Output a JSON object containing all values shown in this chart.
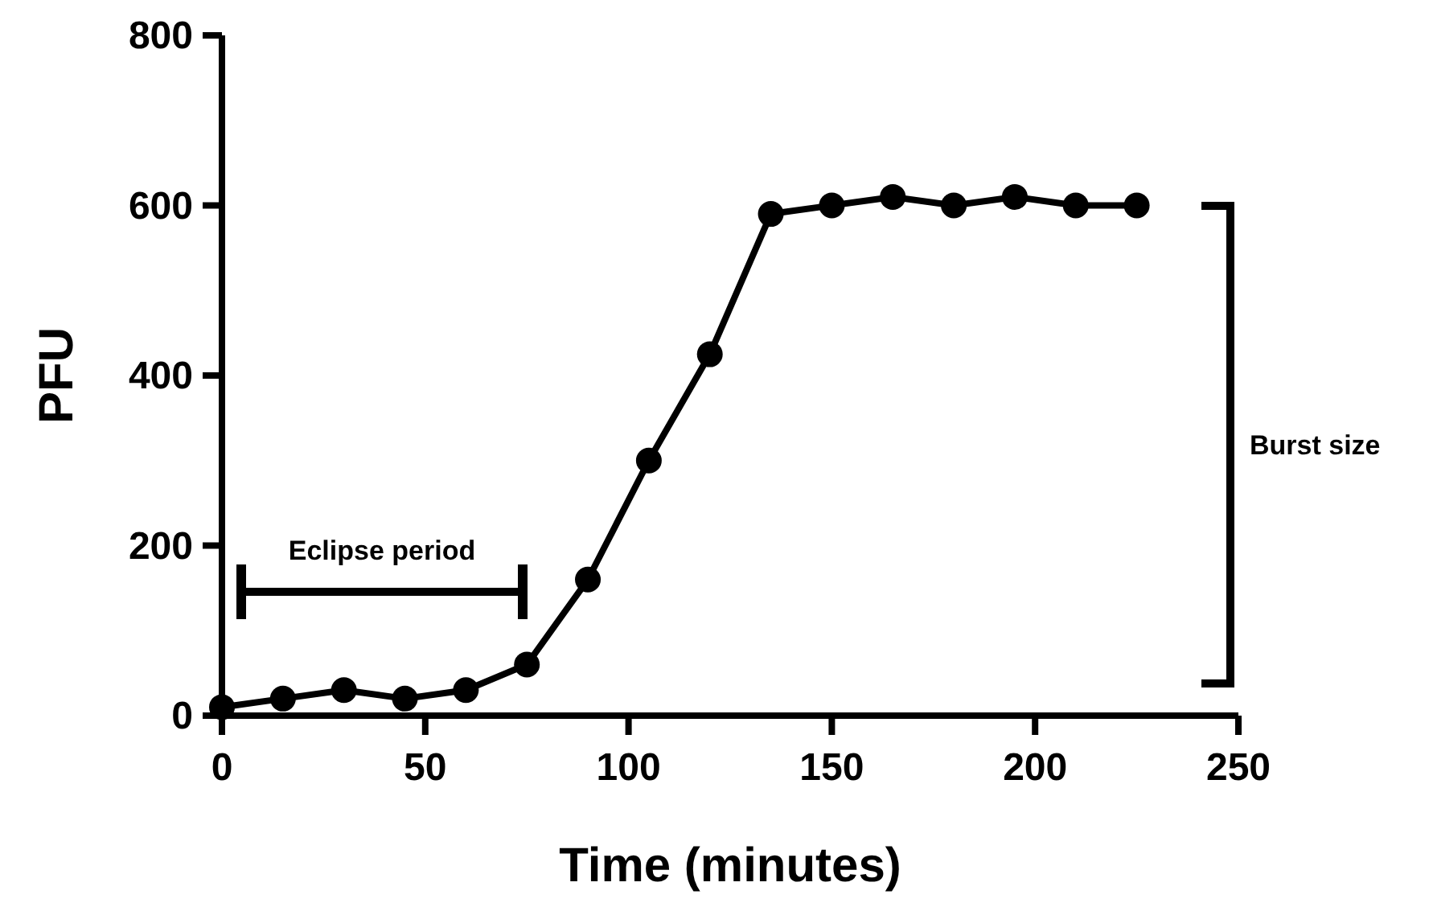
{
  "chart_data": {
    "type": "line",
    "xlabel": "Time (minutes)",
    "ylabel": "PFU",
    "x": [
      0,
      15,
      30,
      45,
      60,
      75,
      90,
      105,
      120,
      135,
      150,
      165,
      180,
      195,
      210,
      225
    ],
    "series": [
      {
        "color": "#000000",
        "values": [
          10,
          20,
          30,
          20,
          30,
          60,
          160,
          300,
          425,
          590,
          600,
          610,
          600,
          610,
          600,
          600
        ]
      }
    ],
    "xlim": [
      0,
      250
    ],
    "xticks": [
      0,
      50,
      100,
      150,
      200,
      250
    ],
    "ylim": [
      0,
      800
    ],
    "yticks": [
      0,
      200,
      400,
      600,
      800
    ],
    "marker": "circle",
    "line_style": "solid",
    "grid": false,
    "annotations": [
      "Eclipse period",
      "Burst size"
    ]
  }
}
